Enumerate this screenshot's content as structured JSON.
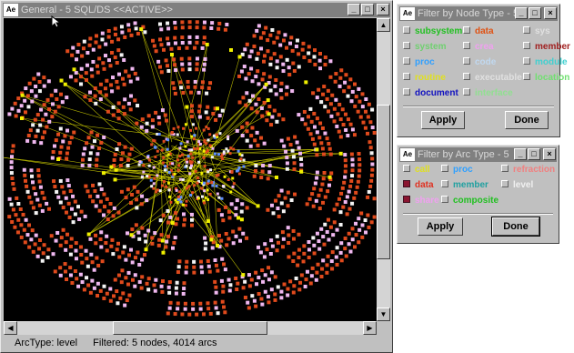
{
  "main_window": {
    "title": "General - 5 SQL/DS <<ACTIVE>>",
    "status": {
      "arc_type": "ArcType: level",
      "filtered": "Filtered: 5 nodes, 4014 arcs"
    }
  },
  "node_dialog": {
    "title": "Filter by Node Type - 5",
    "items": [
      {
        "label": "subsystem",
        "color": "#20c020",
        "checked": false
      },
      {
        "label": "data",
        "color": "#e05010",
        "checked": false
      },
      {
        "label": "sys",
        "color": "#e0e0e0",
        "checked": false
      },
      {
        "label": "system",
        "color": "#70d070",
        "checked": false
      },
      {
        "label": "crea",
        "color": "#f0a0f0",
        "checked": false
      },
      {
        "label": "member",
        "color": "#a02020",
        "checked": false
      },
      {
        "label": "proc",
        "color": "#30a0ff",
        "checked": false
      },
      {
        "label": "code",
        "color": "#c0d8f0",
        "checked": false
      },
      {
        "label": "module",
        "color": "#40d0d0",
        "checked": false
      },
      {
        "label": "routine",
        "color": "#e0e020",
        "checked": false
      },
      {
        "label": "executable",
        "color": "#e0e0e0",
        "checked": false
      },
      {
        "label": "location",
        "color": "#70e070",
        "checked": false
      },
      {
        "label": "document",
        "color": "#1010c0",
        "checked": false
      },
      {
        "label": "interface",
        "color": "#90e090",
        "checked": false
      }
    ],
    "apply": "Apply",
    "done": "Done"
  },
  "arc_dialog": {
    "title": "Filter by Arc Type - 5",
    "items": [
      {
        "label": "call",
        "color": "#e0e020",
        "checked": false
      },
      {
        "label": "proc",
        "color": "#30a0ff",
        "checked": false
      },
      {
        "label": "refraction",
        "color": "#f08080",
        "checked": false
      },
      {
        "label": "data",
        "color": "#e03020",
        "checked": true
      },
      {
        "label": "member",
        "color": "#20a0a0",
        "checked": false
      },
      {
        "label": "level",
        "color": "#f0f0f0",
        "checked": false
      },
      {
        "label": "share",
        "color": "#f0a0f0",
        "checked": true
      },
      {
        "label": "composite",
        "color": "#20c020",
        "checked": false
      }
    ],
    "apply": "Apply",
    "done": "Done"
  },
  "icons": {
    "app": "app-logo-icon",
    "minimize": "_",
    "maximize": "□",
    "close": "×",
    "scroll_up": "▲",
    "scroll_down": "▼",
    "scroll_left": "◀",
    "scroll_right": "▶"
  },
  "colors": {
    "node_orange": "#e04a1c",
    "node_pink": "#f0b8f0",
    "node_white": "#f4f4f4",
    "node_yellow": "#f0f000",
    "node_blue": "#6090ff",
    "edge_yellow": "#d8d800"
  }
}
